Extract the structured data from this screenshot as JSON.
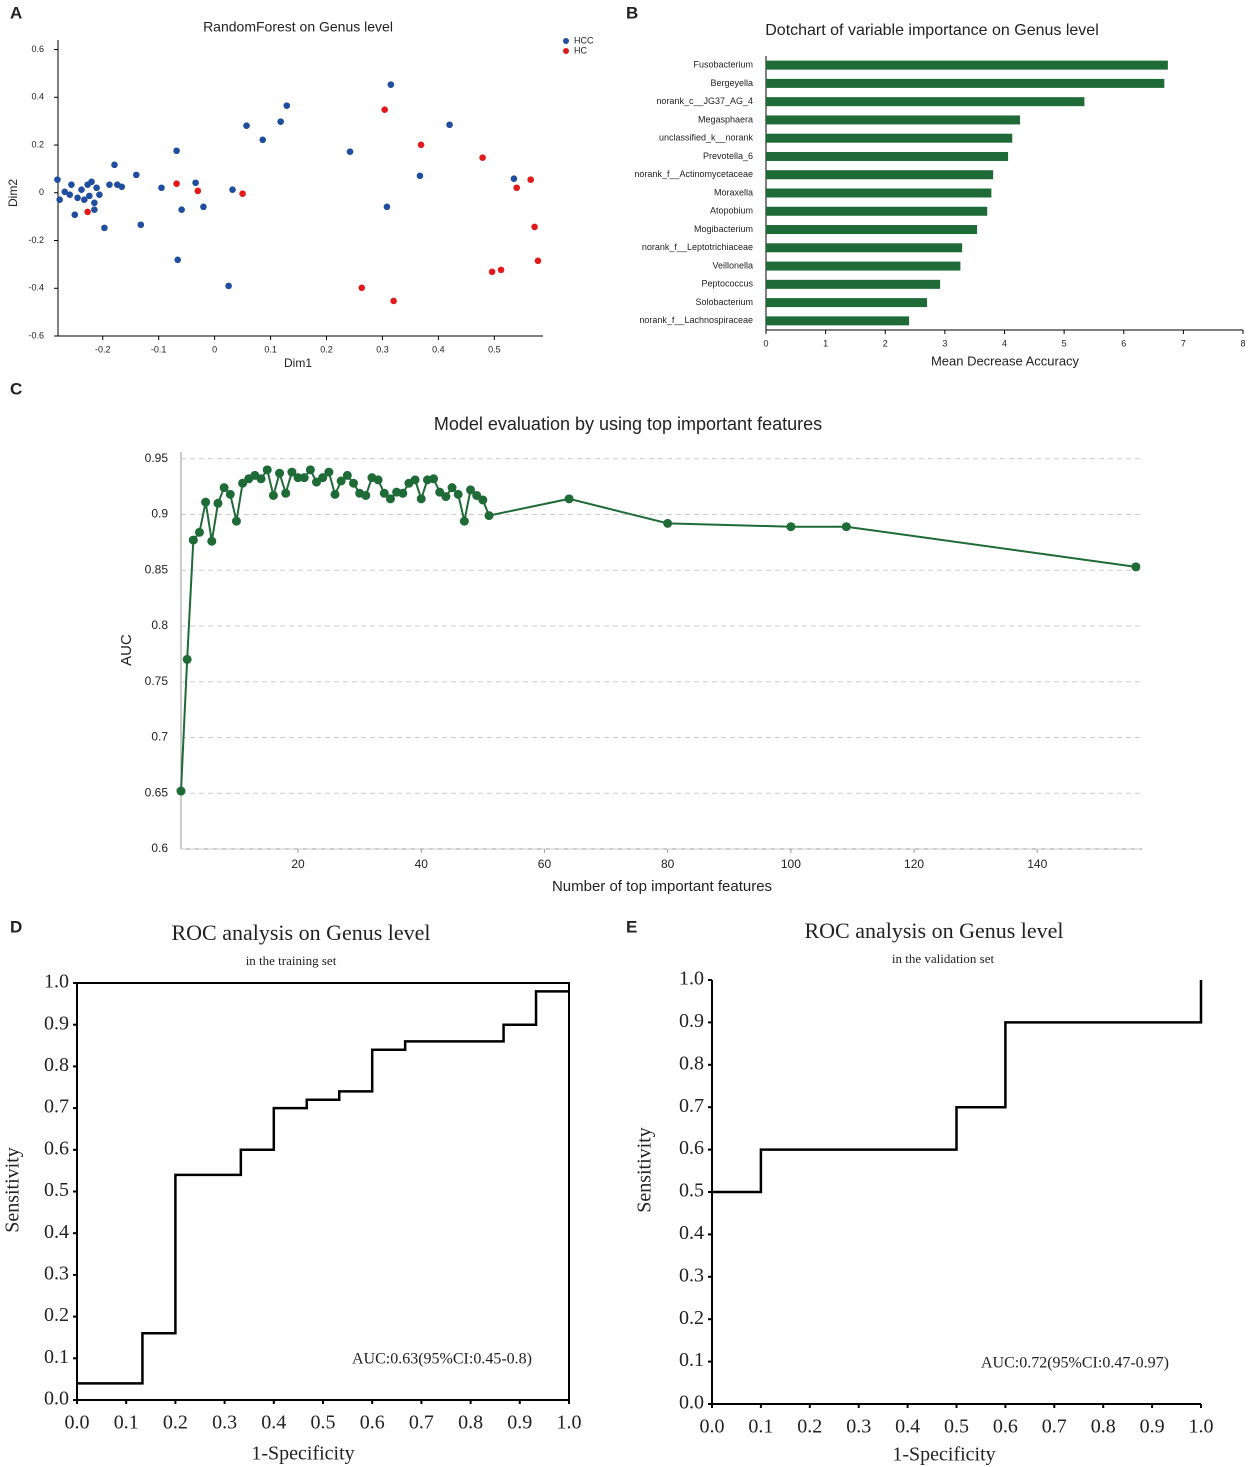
{
  "chart_data": [
    {
      "type": "scatter",
      "label": "A",
      "title": "RandomForest on Genus level",
      "xlabel": "Dim1",
      "ylabel": "Dim2",
      "xlim": [
        -0.28,
        0.587
      ],
      "ylim": [
        -0.6,
        0.64
      ],
      "xticks": [
        -0.2,
        -0.1,
        0,
        0.1,
        0.2,
        0.3,
        0.4,
        0.5
      ],
      "yticks": [
        -0.6,
        -0.4,
        -0.2,
        0,
        0.2,
        0.4,
        0.6
      ],
      "legend": "top-right",
      "series": [
        {
          "name": "HCC",
          "color": "#1f4e9e",
          "x": [
            -0.281,
            -0.277,
            -0.268,
            -0.259,
            -0.256,
            -0.25,
            -0.245,
            -0.238,
            -0.233,
            -0.227,
            -0.224,
            -0.22,
            -0.215,
            -0.211,
            -0.206,
            -0.215,
            -0.197,
            -0.188,
            -0.179,
            -0.174,
            -0.166,
            -0.14,
            -0.132,
            -0.095,
            -0.068,
            -0.066,
            -0.059,
            -0.034,
            -0.02,
            0.025,
            0.032,
            0.057,
            0.086,
            0.118,
            0.129,
            0.242,
            0.308,
            0.315,
            0.367,
            0.42,
            0.535
          ],
          "values": [
            0.055,
            -0.029,
            0.004,
            -0.008,
            0.034,
            -0.092,
            -0.021,
            0.013,
            -0.029,
            0.034,
            -0.013,
            0.046,
            -0.042,
            0.021,
            -0.008,
            -0.071,
            -0.147,
            0.034,
            0.117,
            0.034,
            0.025,
            0.075,
            -0.134,
            0.021,
            0.176,
            -0.281,
            -0.071,
            0.042,
            -0.059,
            -0.39,
            0.013,
            0.281,
            0.222,
            0.298,
            0.365,
            0.172,
            -0.059,
            0.453,
            0.071,
            0.285,
            0.059
          ]
        },
        {
          "name": "HC",
          "color": "#e31a1c",
          "x": [
            -0.227,
            -0.068,
            -0.03,
            0.05,
            0.263,
            0.304,
            0.32,
            0.369,
            0.479,
            0.496,
            0.512,
            0.54,
            0.565,
            0.572,
            0.578
          ],
          "values": [
            -0.08,
            0.038,
            0.008,
            -0.004,
            -0.398,
            0.348,
            -0.453,
            0.201,
            0.147,
            -0.331,
            -0.323,
            0.021,
            0.055,
            -0.143,
            -0.285
          ]
        }
      ]
    },
    {
      "type": "bar",
      "orientation": "horizontal",
      "label": "B",
      "title": "Dotchart of variable importance on Genus level",
      "xlabel": "Mean Decrease Accuracy",
      "color": "#1e6b38",
      "categories": [
        "Fusobacterium",
        "Bergeyella",
        "norank_c__JG37_AG_4",
        "Megasphaera",
        "unclassified_k__norank",
        "Prevotella_6",
        "norank_f__Actinomycetaceae",
        "Moraxella",
        "Atopobium",
        "Mogibacterium",
        "norank_f__Leptotrichiaceae",
        "Veillonella",
        "Peptococcus",
        "Solobacterium",
        "norank_f__Lachnospiraceae"
      ],
      "values": [
        6.74,
        6.68,
        5.34,
        4.26,
        4.13,
        4.06,
        3.81,
        3.78,
        3.71,
        3.54,
        3.29,
        3.26,
        2.92,
        2.7,
        2.4
      ],
      "xlim": [
        0,
        8
      ],
      "xticks": [
        0,
        1,
        2,
        3,
        4,
        5,
        6,
        7,
        8
      ]
    },
    {
      "type": "line",
      "label": "C",
      "title": "Model evaluation by using top important features",
      "xlabel": "Number of top important features",
      "ylabel": "AUC",
      "markers": true,
      "grid": true,
      "xlim": [
        1,
        157
      ],
      "ylim": [
        0.6,
        0.956
      ],
      "xticks": [
        20,
        40,
        60,
        80,
        100,
        120,
        140
      ],
      "yticks": [
        0.6,
        0.65,
        0.7,
        0.75,
        0.8,
        0.85,
        0.9,
        0.95
      ],
      "series": [
        {
          "name": "AUC",
          "color": "#1e6b38",
          "x": [
            1,
            2,
            3,
            4,
            5,
            6,
            7,
            8,
            9,
            10,
            11,
            12,
            13,
            14,
            15,
            16,
            17,
            18,
            19,
            20,
            21,
            22,
            23,
            24,
            25,
            26,
            27,
            28,
            29,
            30,
            31,
            32,
            33,
            34,
            35,
            36,
            37,
            38,
            39,
            40,
            41,
            42,
            43,
            44,
            45,
            46,
            47,
            48,
            49,
            50,
            51,
            64,
            80,
            100,
            109,
            156
          ],
          "values": [
            0.652,
            0.77,
            0.877,
            0.884,
            0.911,
            0.876,
            0.91,
            0.924,
            0.918,
            0.894,
            0.928,
            0.932,
            0.935,
            0.932,
            0.94,
            0.917,
            0.937,
            0.919,
            0.938,
            0.933,
            0.933,
            0.94,
            0.929,
            0.933,
            0.938,
            0.918,
            0.93,
            0.935,
            0.928,
            0.919,
            0.917,
            0.933,
            0.931,
            0.919,
            0.914,
            0.92,
            0.919,
            0.928,
            0.931,
            0.914,
            0.931,
            0.932,
            0.92,
            0.916,
            0.924,
            0.918,
            0.894,
            0.922,
            0.917,
            0.913,
            0.899,
            0.914,
            0.892,
            0.889,
            0.889,
            0.853
          ]
        }
      ]
    },
    {
      "type": "line",
      "label": "D",
      "title": "ROC analysis on Genus level",
      "subtitle": "in the training set",
      "xlabel": "1-Specificity",
      "ylabel": "Sensitivity",
      "annotation": "AUC:0.63(95%CI:0.45-0.8)",
      "box": true,
      "xlim": [
        0,
        1
      ],
      "ylim": [
        0,
        1
      ],
      "xticks": [
        {
          "value": 0,
          "label": "0.0"
        },
        0.1,
        0.2,
        0.3,
        0.4,
        0.5,
        0.6,
        0.7,
        0.8,
        0.9,
        {
          "value": 1,
          "label": "1.0"
        }
      ],
      "yticks": [
        {
          "value": 0,
          "label": "0.0"
        },
        0.1,
        0.2,
        0.3,
        0.4,
        0.5,
        0.6,
        0.7,
        0.8,
        0.9,
        {
          "value": 1,
          "label": "1.0"
        }
      ],
      "series": [
        {
          "name": "ROC",
          "color": "#000000",
          "x": [
            0,
            0.133,
            0.133,
            0.2,
            0.2,
            0.333,
            0.333,
            0.4,
            0.4,
            0.467,
            0.467,
            0.533,
            0.533,
            0.6,
            0.6,
            0.667,
            0.667,
            0.867,
            0.867,
            0.933,
            0.933,
            1
          ],
          "values": [
            0.04,
            0.04,
            0.16,
            0.16,
            0.54,
            0.54,
            0.6,
            0.6,
            0.7,
            0.7,
            0.72,
            0.72,
            0.74,
            0.74,
            0.84,
            0.84,
            0.86,
            0.86,
            0.9,
            0.9,
            0.98,
            0.98
          ]
        }
      ]
    },
    {
      "type": "line",
      "label": "E",
      "title": "ROC analysis on Genus level",
      "subtitle": "in the validation set",
      "xlabel": "1-Specificity",
      "ylabel": "Sensitivity",
      "annotation": "AUC:0.72(95%CI:0.47-0.97)",
      "box": false,
      "xlim": [
        0,
        1
      ],
      "ylim": [
        0,
        1
      ],
      "xticks": [
        {
          "value": 0,
          "label": "0.0"
        },
        0.1,
        0.2,
        0.3,
        0.4,
        0.5,
        0.6,
        0.7,
        0.8,
        0.9,
        {
          "value": 1,
          "label": "1.0"
        }
      ],
      "yticks": [
        {
          "value": 0,
          "label": "0.0"
        },
        0.1,
        0.2,
        0.3,
        0.4,
        0.5,
        0.6,
        0.7,
        0.8,
        0.9,
        {
          "value": 1,
          "label": "1.0"
        }
      ],
      "series": [
        {
          "name": "ROC",
          "color": "#000000",
          "x": [
            0,
            0.1,
            0.1,
            0.5,
            0.5,
            0.6,
            0.6,
            1,
            1
          ],
          "values": [
            0.5,
            0.5,
            0.6,
            0.6,
            0.7,
            0.7,
            0.9,
            0.9,
            1
          ]
        }
      ]
    }
  ]
}
